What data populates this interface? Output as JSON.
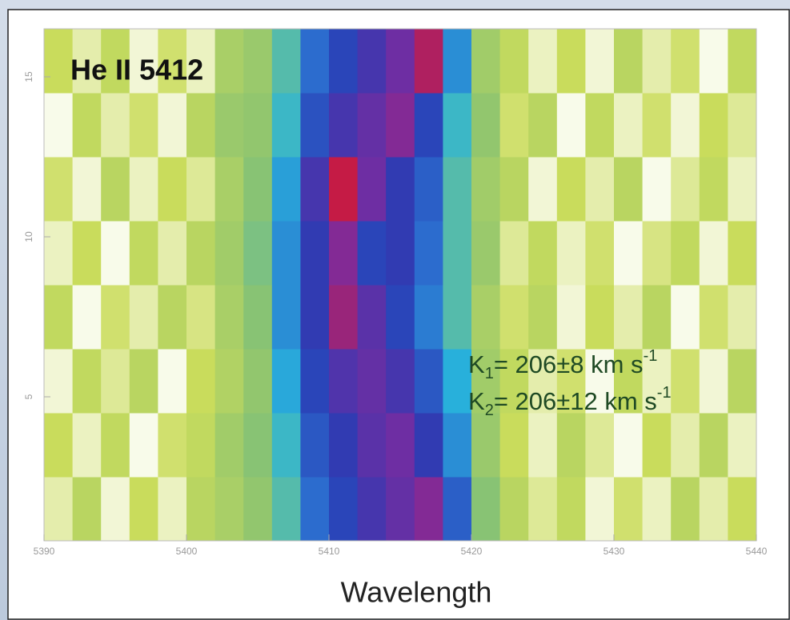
{
  "chart_data": {
    "type": "heatmap",
    "title": "He II 5412",
    "x_label": "Wavelength",
    "annotations": [
      {
        "symbol": "K",
        "subscript": "1",
        "text": "= 206±8   km s",
        "superscript": "-1"
      },
      {
        "symbol": "K",
        "subscript": "2",
        "text": "= 206±12 km s",
        "superscript": "-1"
      }
    ],
    "xbins": [
      5390,
      5392,
      5394,
      5396,
      5398,
      5400,
      5402,
      5404,
      5406,
      5408,
      5410,
      5412,
      5414,
      5416,
      5418,
      5420,
      5422,
      5424,
      5426,
      5428,
      5430,
      5432,
      5434,
      5436,
      5438,
      5440
    ],
    "ybins": [
      0.5,
      2.5,
      4.5,
      6.5,
      8.5,
      10.5,
      12.5,
      14.5,
      16.5
    ],
    "values": [
      [
        0.96,
        0.9,
        0.98,
        0.92,
        0.97,
        0.9,
        0.88,
        0.85,
        0.8,
        0.68,
        0.62,
        0.58,
        0.55,
        0.52,
        0.66,
        0.84,
        0.9,
        0.95,
        0.91,
        0.98,
        0.93,
        0.97,
        0.9,
        0.96,
        0.92
      ],
      [
        0.92,
        0.97,
        0.91,
        0.99,
        0.93,
        0.91,
        0.87,
        0.84,
        0.78,
        0.65,
        0.6,
        0.56,
        0.54,
        0.6,
        0.72,
        0.86,
        0.92,
        0.97,
        0.9,
        0.95,
        0.99,
        0.92,
        0.96,
        0.9,
        0.97
      ],
      [
        0.98,
        0.91,
        0.95,
        0.9,
        0.99,
        0.92,
        0.89,
        0.85,
        0.75,
        0.62,
        0.57,
        0.55,
        0.58,
        0.65,
        0.76,
        0.87,
        0.91,
        0.96,
        0.93,
        0.99,
        0.91,
        0.97,
        0.93,
        0.98,
        0.9
      ],
      [
        0.91,
        0.99,
        0.93,
        0.96,
        0.9,
        0.94,
        0.88,
        0.84,
        0.72,
        0.6,
        0.5,
        0.56,
        0.62,
        0.7,
        0.8,
        0.88,
        0.93,
        0.9,
        0.98,
        0.92,
        0.96,
        0.9,
        0.99,
        0.93,
        0.96
      ],
      [
        0.97,
        0.92,
        0.99,
        0.91,
        0.96,
        0.9,
        0.87,
        0.83,
        0.72,
        0.6,
        0.52,
        0.62,
        0.6,
        0.68,
        0.8,
        0.86,
        0.95,
        0.91,
        0.97,
        0.93,
        0.99,
        0.94,
        0.91,
        0.98,
        0.92
      ],
      [
        0.93,
        0.98,
        0.9,
        0.97,
        0.92,
        0.95,
        0.88,
        0.84,
        0.74,
        0.58,
        0.46,
        0.54,
        0.6,
        0.66,
        0.8,
        0.87,
        0.9,
        0.98,
        0.92,
        0.96,
        0.9,
        0.99,
        0.95,
        0.91,
        0.97
      ],
      [
        0.99,
        0.91,
        0.96,
        0.93,
        0.98,
        0.9,
        0.86,
        0.85,
        0.78,
        0.64,
        0.58,
        0.55,
        0.52,
        0.62,
        0.78,
        0.85,
        0.93,
        0.9,
        0.99,
        0.91,
        0.97,
        0.93,
        0.98,
        0.92,
        0.95
      ],
      [
        0.92,
        0.96,
        0.91,
        0.98,
        0.93,
        0.97,
        0.88,
        0.86,
        0.8,
        0.68,
        0.62,
        0.58,
        0.54,
        0.48,
        0.72,
        0.87,
        0.91,
        0.97,
        0.92,
        0.98,
        0.9,
        0.96,
        0.93,
        0.99,
        0.91
      ]
    ],
    "zlim": [
      0.45,
      1.0
    ],
    "colormap": [
      "#d01838",
      "#7a2ca0",
      "#2a3cb4",
      "#2c70d0",
      "#28b4dc",
      "#8cc470",
      "#cadc5c",
      "#ffffff"
    ],
    "xlim": [
      5390,
      5440
    ],
    "ylim": [
      0.5,
      16.5
    ],
    "xticks": [
      5390,
      5400,
      5410,
      5420,
      5430,
      5440
    ],
    "yticks": [
      5,
      10,
      15
    ]
  }
}
